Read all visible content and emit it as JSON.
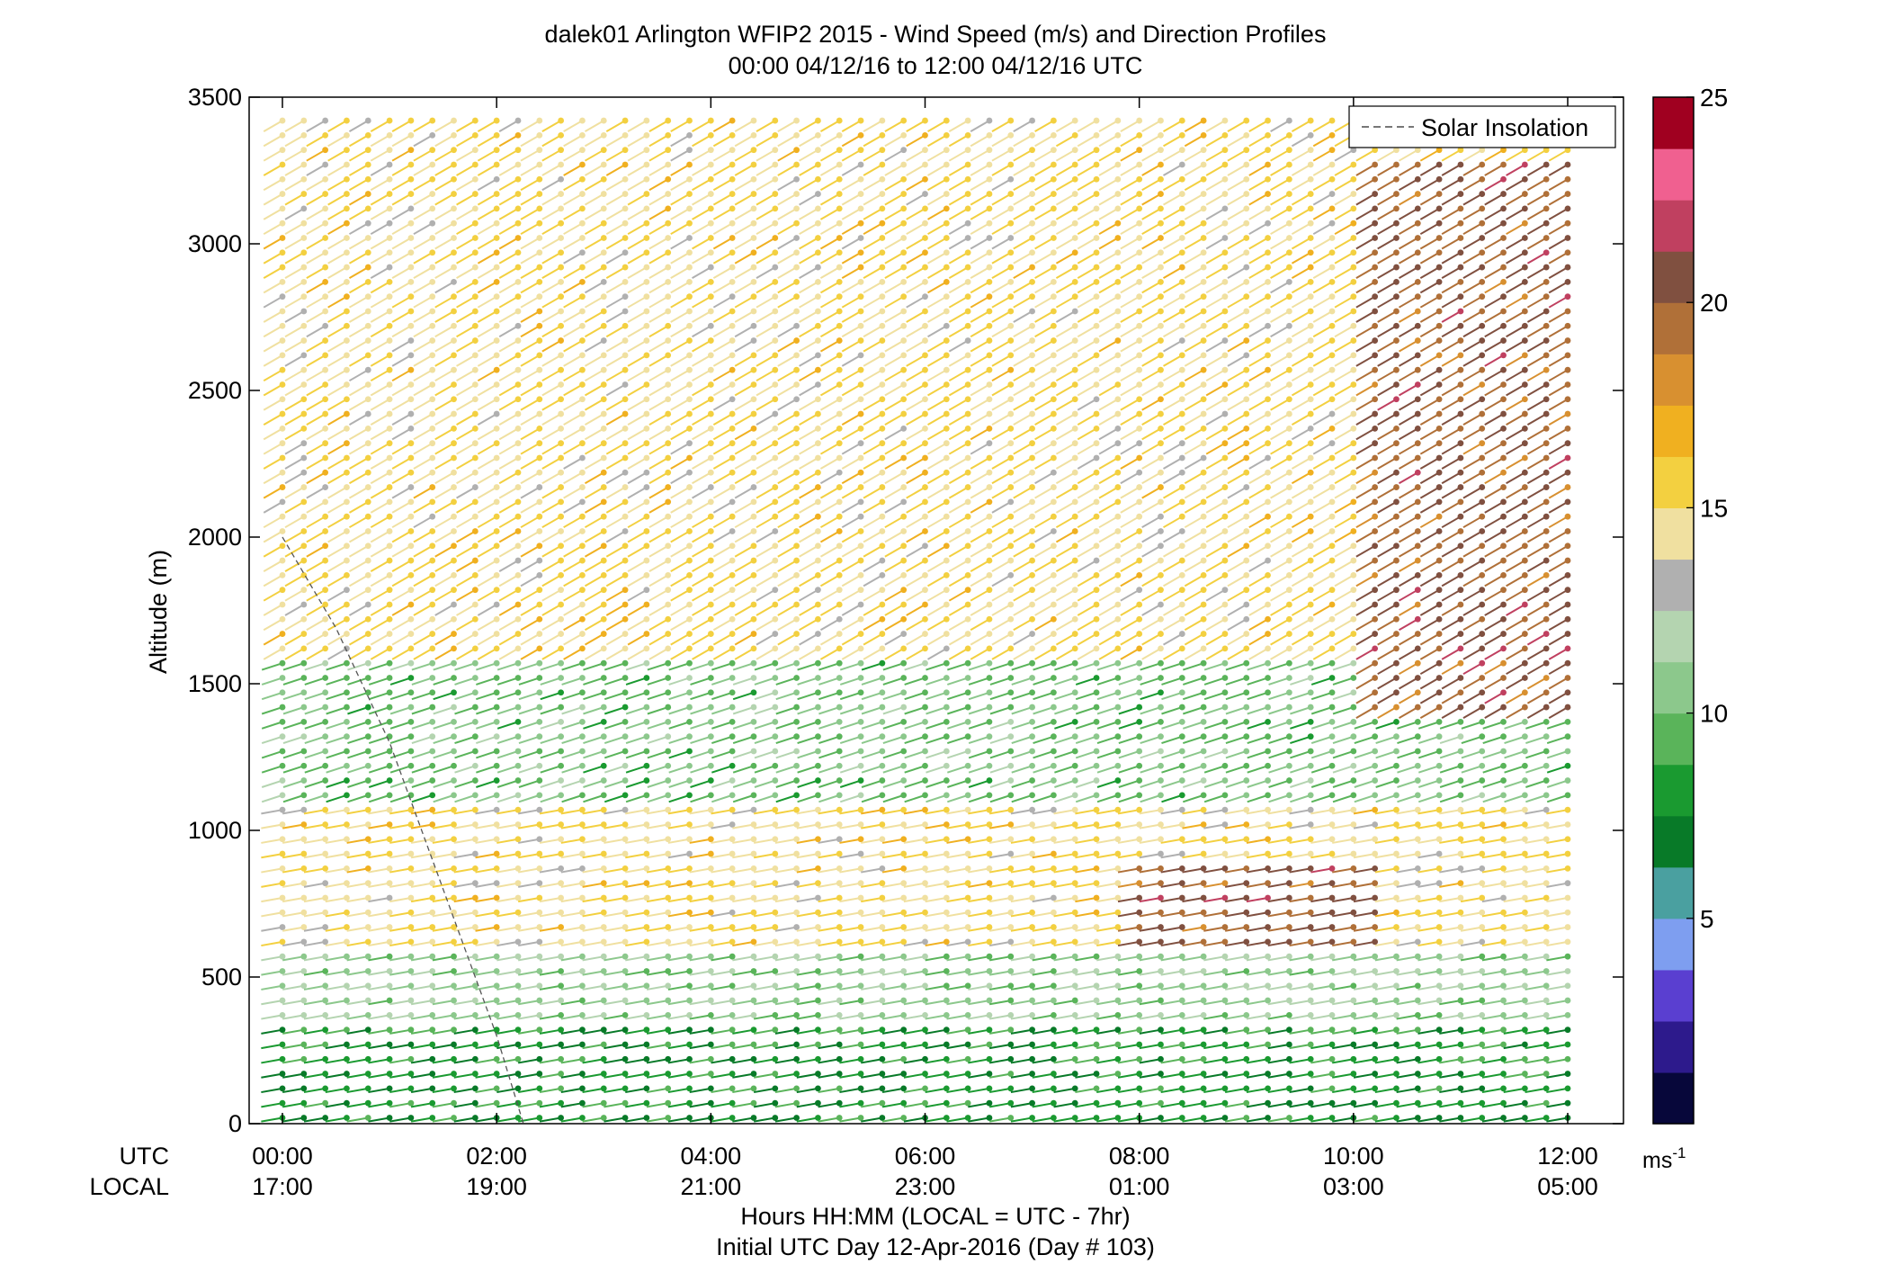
{
  "chart_data": {
    "type": "wind-barb-profile",
    "title": "dalek01 Arlington WFIP2 2015 - Wind Speed (m/s) and Direction Profiles",
    "subtitle": "00:00 04/12/16 to 12:00 04/12/16  UTC",
    "ylabel": "Altitude (m)",
    "xlabel": "Hours HH:MM  (LOCAL = UTC - 7hr)",
    "xlabel2": "Initial UTC Day 12-Apr-2016 (Day # 103)",
    "utc_label": "UTC",
    "local_label": "LOCAL",
    "xlim": [
      0,
      12
    ],
    "ylim": [
      0,
      3500
    ],
    "y_ticks": [
      0,
      500,
      1000,
      1500,
      2000,
      2500,
      3000,
      3500
    ],
    "utc_ticks": [
      {
        "hour": 0,
        "label": "00:00"
      },
      {
        "hour": 2,
        "label": "02:00"
      },
      {
        "hour": 4,
        "label": "04:00"
      },
      {
        "hour": 6,
        "label": "06:00"
      },
      {
        "hour": 8,
        "label": "08:00"
      },
      {
        "hour": 10,
        "label": "10:00"
      },
      {
        "hour": 12,
        "label": "12:00"
      }
    ],
    "local_ticks": [
      {
        "hour": 0,
        "label": "17:00"
      },
      {
        "hour": 2,
        "label": "19:00"
      },
      {
        "hour": 4,
        "label": "21:00"
      },
      {
        "hour": 6,
        "label": "23:00"
      },
      {
        "hour": 8,
        "label": "01:00"
      },
      {
        "hour": 10,
        "label": "03:00"
      },
      {
        "hour": 12,
        "label": "05:00"
      }
    ],
    "legend": {
      "entries": [
        "Solar Insolation"
      ],
      "location": "top-right"
    },
    "colorbar": {
      "range": [
        0,
        25
      ],
      "ticks": [
        5,
        10,
        15,
        20,
        25
      ],
      "unit_label": "ms",
      "unit_exponent": "-1",
      "colors": [
        "#07073a",
        "#2d1a8c",
        "#5a3fd0",
        "#7e9ef0",
        "#4aa0a0",
        "#087a28",
        "#1a9a30",
        "#5ab45a",
        "#8cc88c",
        "#b4d4b0",
        "#b0b0b0",
        "#f0e0a0",
        "#f3d040",
        "#f0b020",
        "#d89030",
        "#b07038",
        "#805040",
        "#c04060",
        "#f06090",
        "#a00020"
      ]
    },
    "solar_insolation_line": [
      {
        "hour": 0.0,
        "altitude": 2000
      },
      {
        "hour": 0.5,
        "altitude": 1690
      },
      {
        "hour": 1.0,
        "altitude": 1300
      },
      {
        "hour": 1.5,
        "altitude": 800
      },
      {
        "hour": 2.0,
        "altitude": 300
      },
      {
        "hour": 2.25,
        "altitude": 0
      }
    ],
    "series": [
      {
        "altitude_band": [
          0,
          350
        ],
        "speed": 8,
        "direction": "westerly"
      },
      {
        "altitude_band": [
          350,
          600
        ],
        "speed": 11,
        "direction": "westerly"
      },
      {
        "altitude_band": [
          600,
          1100
        ],
        "speed": 15,
        "direction": "westerly"
      },
      {
        "altitude_band": [
          1100,
          1600
        ],
        "speed": 10,
        "direction": "west-southwest"
      },
      {
        "altitude_band": [
          1600,
          3500
        ],
        "speed": 15,
        "direction": "southwesterly"
      },
      {
        "region": "08:00-10:00 at 600-900 m",
        "speed": 20,
        "direction": "westerly"
      },
      {
        "region": "10:00-12:00 above 1400 m",
        "speed": 20,
        "direction": "southwesterly"
      }
    ]
  }
}
